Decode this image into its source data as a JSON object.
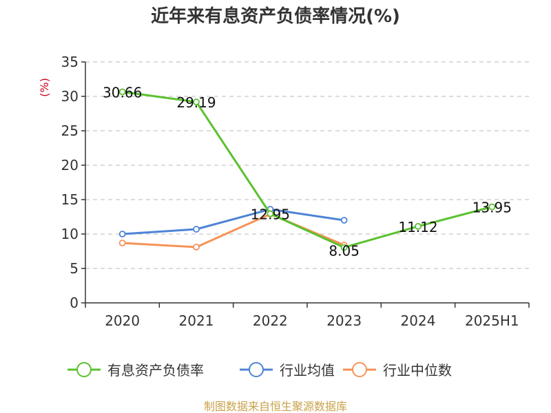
{
  "chart_data": {
    "type": "line",
    "title": "近年来有息资产负债率情况(%)",
    "ylabel": "(%)",
    "xlabel": "",
    "categories": [
      "2020",
      "2021",
      "2022",
      "2023",
      "2024",
      "2025H1"
    ],
    "ylim": [
      0,
      35
    ],
    "yticks": [
      "0",
      "5",
      "10",
      "15",
      "20",
      "25",
      "30",
      "35"
    ],
    "grid": true,
    "legend_position": "bottom",
    "series": [
      {
        "name": "有息资产负债率",
        "color": "#5ac12e",
        "values": [
          30.66,
          29.19,
          12.95,
          8.05,
          11.12,
          13.95
        ],
        "labels": [
          "30.66",
          "29.19",
          "12.95",
          "8.05",
          "11.12",
          "13.95"
        ]
      },
      {
        "name": "行业均值",
        "color": "#4d84d6",
        "values": [
          10.0,
          10.7,
          13.6,
          12.0,
          null,
          null
        ]
      },
      {
        "name": "行业中位数",
        "color": "#f79257",
        "values": [
          8.7,
          8.1,
          12.9,
          8.4,
          null,
          null
        ]
      }
    ],
    "source": "制图数据来自恒生聚源数据库"
  }
}
